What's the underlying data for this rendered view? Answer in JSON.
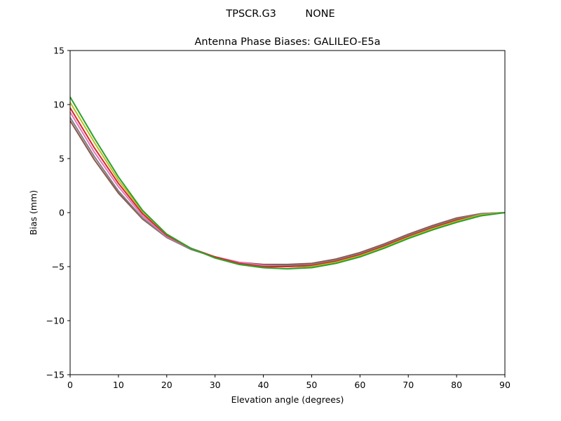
{
  "chart_data": {
    "type": "line",
    "suptitle": "TPSCR.G3         NONE",
    "title": "Antenna Phase Biases: GALILEO-E5a",
    "xlabel": "Elevation angle (degrees)",
    "ylabel": "Bias (mm)",
    "xlim": [
      0,
      90
    ],
    "ylim": [
      -15,
      15
    ],
    "xticks": [
      0,
      10,
      20,
      30,
      40,
      50,
      60,
      70,
      80,
      90
    ],
    "yticks": [
      -15,
      -10,
      -5,
      0,
      5,
      10,
      15
    ],
    "xtick_labels": [
      "0",
      "10",
      "20",
      "30",
      "40",
      "50",
      "60",
      "70",
      "80",
      "90"
    ],
    "ytick_labels": [
      "−15",
      "−10",
      "−5",
      "0",
      "5",
      "10",
      "15"
    ],
    "grid": false,
    "x": [
      0,
      5,
      10,
      15,
      20,
      25,
      30,
      35,
      40,
      45,
      50,
      55,
      60,
      65,
      70,
      75,
      80,
      85,
      90
    ],
    "series": [
      {
        "color": "#8c564b",
        "values": [
          8.5,
          4.9,
          1.8,
          -0.6,
          -2.3,
          -3.4,
          -4.1,
          -4.6,
          -4.8,
          -4.8,
          -4.7,
          -4.3,
          -3.7,
          -2.9,
          -2.0,
          -1.2,
          -0.5,
          -0.1,
          0.0
        ]
      },
      {
        "color": "#7f7f7f",
        "values": [
          8.8,
          5.2,
          2.0,
          -0.5,
          -2.3,
          -3.4,
          -4.1,
          -4.6,
          -4.9,
          -4.9,
          -4.8,
          -4.4,
          -3.8,
          -3.0,
          -2.1,
          -1.3,
          -0.6,
          -0.1,
          0.0
        ]
      },
      {
        "color": "#e377c2",
        "values": [
          9.3,
          5.6,
          2.4,
          -0.3,
          -2.2,
          -3.3,
          -4.1,
          -4.6,
          -4.9,
          -5.0,
          -4.9,
          -4.5,
          -3.9,
          -3.1,
          -2.2,
          -1.4,
          -0.7,
          -0.2,
          0.0
        ]
      },
      {
        "color": "#d62728",
        "values": [
          9.7,
          6.0,
          2.7,
          -0.1,
          -2.1,
          -3.3,
          -4.1,
          -4.7,
          -5.0,
          -5.0,
          -4.9,
          -4.5,
          -3.9,
          -3.1,
          -2.2,
          -1.4,
          -0.7,
          -0.2,
          0.0
        ]
      },
      {
        "color": "#bcbd22",
        "values": [
          10.2,
          6.5,
          3.0,
          0.1,
          -2.0,
          -3.3,
          -4.2,
          -4.8,
          -5.1,
          -5.2,
          -5.0,
          -4.6,
          -4.0,
          -3.2,
          -2.3,
          -1.5,
          -0.8,
          -0.2,
          0.0
        ]
      },
      {
        "color": "#2ca02c",
        "values": [
          10.7,
          6.9,
          3.3,
          0.2,
          -2.0,
          -3.3,
          -4.2,
          -4.8,
          -5.1,
          -5.2,
          -5.1,
          -4.7,
          -4.1,
          -3.3,
          -2.4,
          -1.6,
          -0.9,
          -0.3,
          0.0
        ]
      }
    ]
  }
}
